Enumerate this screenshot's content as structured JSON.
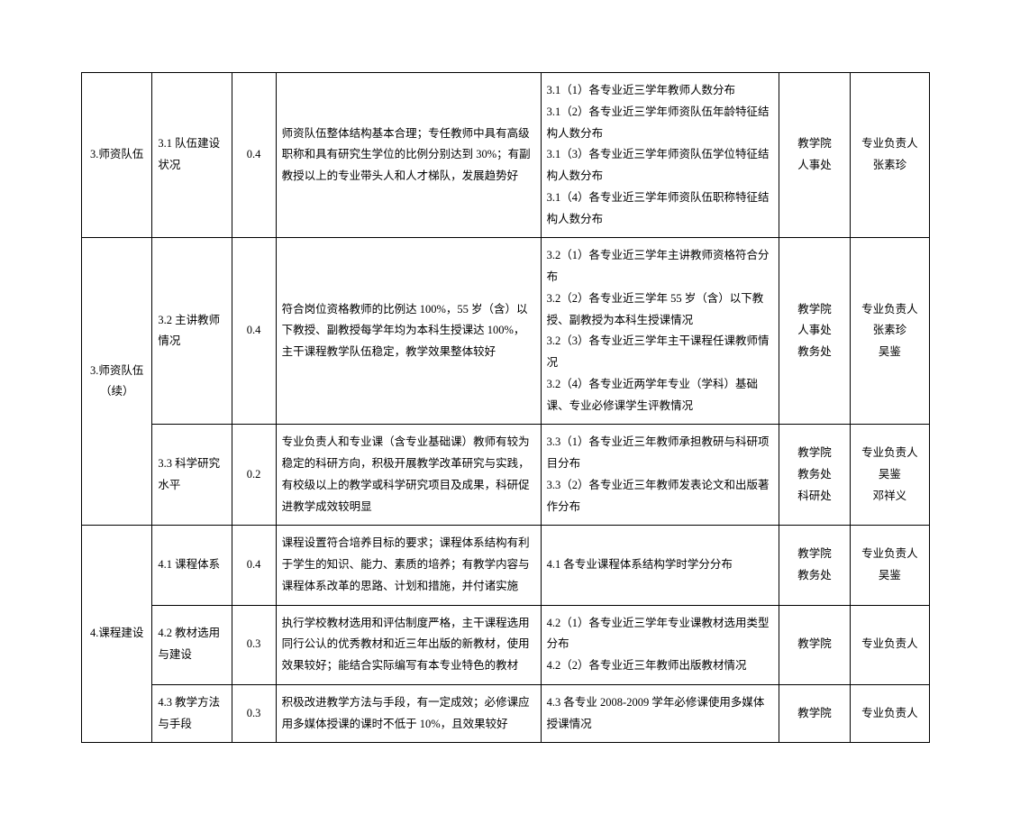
{
  "table": {
    "column_widths_pct": [
      8,
      9,
      5,
      30,
      27,
      8,
      9
    ],
    "border_color": "#000000",
    "background_color": "#ffffff",
    "font_size": 12.5,
    "line_height": 1.9,
    "rows": [
      {
        "col1": "3.师资队伍",
        "col2": "3.1 队伍建设状况",
        "col3": "0.4",
        "col4": "师资队伍整体结构基本合理；专任教师中具有高级职称和具有研究生学位的比例分别达到 30%；有副教授以上的专业带头人和人才梯队，发展趋势好",
        "col5": "3.1（1）各专业近三学年教师人数分布\n3.1（2）各专业近三学年师资队伍年龄特征结构人数分布\n3.1（3）各专业近三学年师资队伍学位特征结构人数分布\n3.1（4）各专业近三学年师资队伍职称特征结构人数分布",
        "col6": "教学院\n人事处",
        "col7": "专业负责人\n张素珍"
      },
      {
        "col1": "3.师资队伍（续）",
        "col1_rowspan": 2,
        "col2": "3.2 主讲教师情况",
        "col3": "0.4",
        "col4": "符合岗位资格教师的比例达 100%，55 岁（含）以下教授、副教授每学年均为本科生授课达 100%，主干课程教学队伍稳定，教学效果整体较好",
        "col5": "3.2（1）各专业近三学年主讲教师资格符合分布\n3.2（2）各专业近三学年 55 岁（含）以下教授、副教授为本科生授课情况\n3.2（3）各专业近三学年主干课程任课教师情况\n3.2（4）各专业近两学年专业（学科）基础课、专业必修课学生评教情况",
        "col6": "教学院\n人事处\n教务处",
        "col7": "专业负责人\n张素珍\n吴鉴"
      },
      {
        "col2": "3.3 科学研究水平",
        "col3": "0.2",
        "col4": "专业负责人和专业课（含专业基础课）教师有较为稳定的科研方向，积极开展教学改革研究与实践，有校级以上的教学或科学研究项目及成果，科研促进教学成效较明显",
        "col5": "3.3（1）各专业近三年教师承担教研与科研项目分布\n3.3（2）各专业近三年教师发表论文和出版著作分布",
        "col6": "教学院\n教务处\n科研处",
        "col7": "专业负责人\n吴鉴\n邓祥义"
      },
      {
        "col1": "4.课程建设",
        "col1_rowspan": 3,
        "col2": "4.1 课程体系",
        "col3": "0.4",
        "col4": "课程设置符合培养目标的要求；课程体系结构有利于学生的知识、能力、素质的培养；有教学内容与课程体系改革的思路、计划和措施，并付诸实施",
        "col5": "4.1 各专业课程体系结构学时学分分布",
        "col6": "教学院\n教务处",
        "col7": "专业负责人\n吴鉴"
      },
      {
        "col2": "4.2 教材选用与建设",
        "col3": "0.3",
        "col4": "执行学校教材选用和评估制度严格，主干课程选用同行公认的优秀教材和近三年出版的新教材，使用效果较好；能结合实际编写有本专业特色的教材",
        "col5": "4.2（1）各专业近三学年专业课教材选用类型分布\n4.2（2）各专业近三年教师出版教材情况",
        "col6": "教学院",
        "col7": "专业负责人"
      },
      {
        "col2": "4.3 教学方法与手段",
        "col3": "0.3",
        "col4": "积极改进教学方法与手段，有一定成效；必修课应用多媒体授课的课时不低于 10%，且效果较好",
        "col5": "4.3 各专业 2008-2009 学年必修课使用多媒体授课情况",
        "col6": "教学院",
        "col7": "专业负责人"
      }
    ]
  }
}
